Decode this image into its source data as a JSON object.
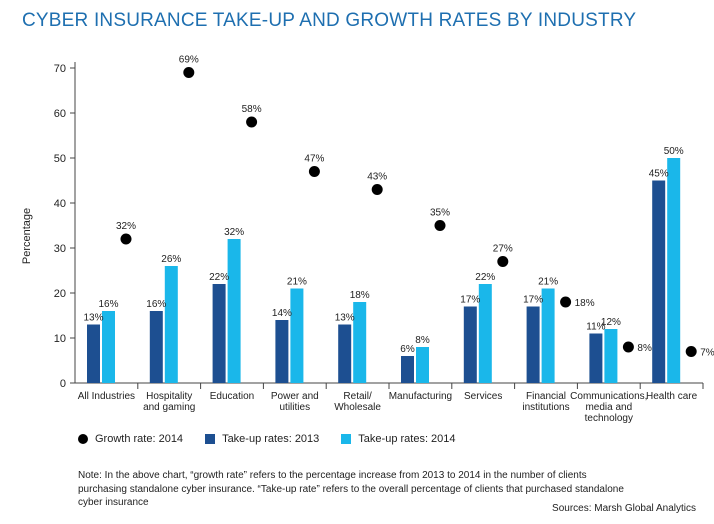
{
  "title": "CYBER INSURANCE TAKE-UP AND GROWTH RATES BY INDUSTRY",
  "colors": {
    "title": "#1e6fb0",
    "growth": "#000000",
    "take_up_2013": "#1d4f91",
    "take_up_2014": "#1ab7ea"
  },
  "legend": {
    "growth": "Growth rate: 2014",
    "take_up_2013": "Take-up rates: 2013",
    "take_up_2014": "Take-up rates: 2014"
  },
  "note": "Note: In the above chart, “growth rate” refers to the percentage increase from 2013 to 2014 in the number of clients purchasing standalone cyber insurance. “Take-up rate” refers to the overall percentage of clients that purchased standalone cyber insurance",
  "source": "Sources: Marsh Global Analytics",
  "chart_data": {
    "type": "bar",
    "title": "CYBER INSURANCE TAKE-UP AND GROWTH RATES BY INDUSTRY",
    "xlabel": "",
    "ylabel": "Percentage",
    "ylim": [
      0,
      70
    ],
    "yticks": [
      0,
      10,
      20,
      30,
      40,
      50,
      60,
      70
    ],
    "grid": false,
    "legend_position": "bottom",
    "categories": [
      [
        "All Industries"
      ],
      [
        "Hospitality",
        "and gaming"
      ],
      [
        "Education"
      ],
      [
        "Power and",
        "utilities"
      ],
      [
        "Retail/",
        "Wholesale"
      ],
      [
        "Manufacturing"
      ],
      [
        "Services"
      ],
      [
        "Financial",
        "institutions"
      ],
      [
        "Communications,",
        "media and",
        "technology"
      ],
      [
        "Health care"
      ]
    ],
    "series": [
      {
        "name": "Take-up rates: 2013",
        "type": "bar",
        "values": [
          13,
          16,
          22,
          14,
          13,
          6,
          17,
          17,
          11,
          45
        ]
      },
      {
        "name": "Take-up rates: 2014",
        "type": "bar",
        "values": [
          16,
          26,
          32,
          21,
          18,
          8,
          22,
          21,
          12,
          50
        ]
      },
      {
        "name": "Growth rate: 2014",
        "type": "scatter",
        "values": [
          32,
          69,
          58,
          47,
          43,
          35,
          27,
          18,
          8,
          7
        ]
      }
    ],
    "value_suffix": "%"
  }
}
